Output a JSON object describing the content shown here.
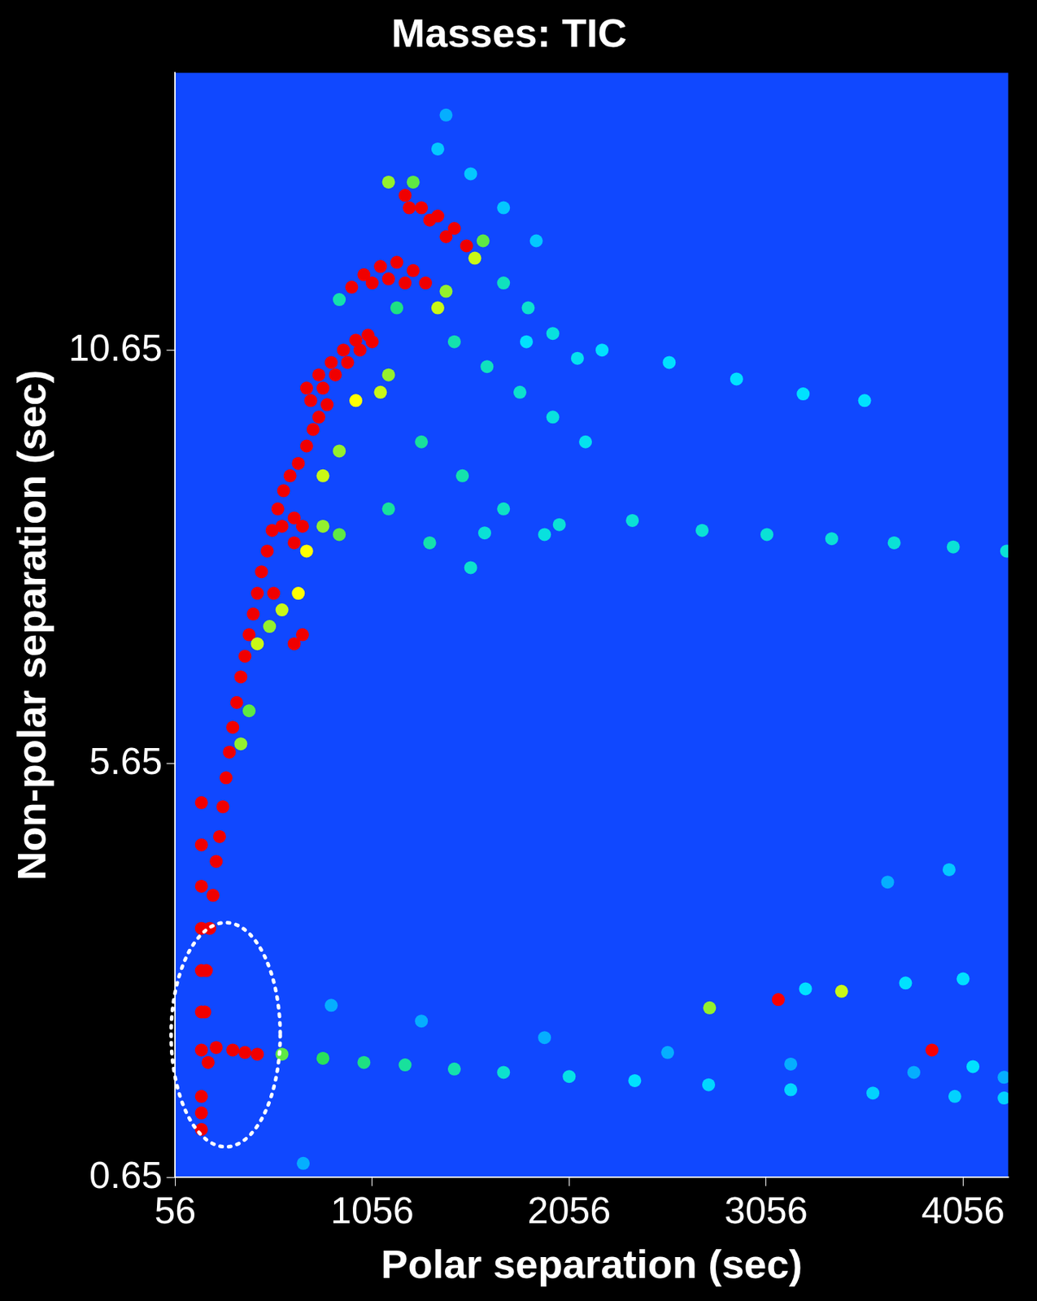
{
  "chart_data": {
    "type": "heatmap",
    "title": "Masses: TIC",
    "x_label": "Polar separation (sec)",
    "y_label": "Non-polar separation (sec)",
    "xlim": [
      56,
      4285
    ],
    "ylim": [
      0.65,
      14.0
    ],
    "xticks": [
      56,
      1056,
      2056,
      3056,
      4056
    ],
    "yticks": [
      0.65,
      5.65,
      10.65
    ],
    "grid": false,
    "zlim": [
      0,
      100
    ],
    "highlight": {
      "x": [
        35,
        589
      ],
      "y": [
        1.02,
        3.73
      ]
    },
    "cells": [
      [
        1431,
        13.49,
        20
      ],
      [
        848,
        2.73,
        20
      ],
      [
        1306,
        2.54,
        20
      ],
      [
        1931,
        2.34,
        20
      ],
      [
        2556,
        2.16,
        20
      ],
      [
        3181,
        2.02,
        20
      ],
      [
        3806,
        1.92,
        20
      ],
      [
        4264,
        1.86,
        20
      ],
      [
        3673,
        4.22,
        20
      ],
      [
        706,
        0.82,
        20
      ],
      [
        1389,
        13.08,
        25
      ],
      [
        1556,
        12.78,
        25
      ],
      [
        1723,
        12.37,
        25
      ],
      [
        1889,
        11.97,
        25
      ],
      [
        3985,
        4.37,
        25
      ],
      [
        1839,
        10.75,
        30
      ],
      [
        2223,
        10.65,
        30
      ],
      [
        2564,
        10.5,
        30
      ],
      [
        2906,
        10.3,
        30
      ],
      [
        3244,
        10.12,
        30
      ],
      [
        3556,
        10.04,
        30
      ],
      [
        1627,
        8.44,
        35
      ],
      [
        2006,
        8.54,
        35
      ],
      [
        2377,
        8.59,
        35
      ],
      [
        2731,
        8.47,
        35
      ],
      [
        3060,
        8.42,
        35
      ],
      [
        3389,
        8.37,
        35
      ],
      [
        3706,
        8.32,
        35
      ],
      [
        4006,
        8.27,
        35
      ],
      [
        4277,
        8.22,
        35
      ],
      [
        3256,
        2.93,
        30
      ],
      [
        3764,
        3.0,
        30
      ],
      [
        4056,
        3.05,
        30
      ],
      [
        4106,
        1.99,
        30
      ],
      [
        2769,
        2.7,
        60
      ],
      [
        3439,
        2.9,
        65
      ],
      [
        3118,
        2.8,
        92
      ],
      [
        3898,
        2.19,
        92
      ],
      [
        1723,
        11.46,
        38
      ],
      [
        1848,
        11.16,
        36
      ],
      [
        1973,
        10.85,
        34
      ],
      [
        2098,
        10.55,
        32
      ],
      [
        1473,
        10.75,
        40
      ],
      [
        1639,
        10.45,
        38
      ],
      [
        1806,
        10.14,
        36
      ],
      [
        1973,
        9.84,
        34
      ],
      [
        2139,
        9.54,
        32
      ],
      [
        1306,
        9.54,
        42
      ],
      [
        1514,
        9.13,
        40
      ],
      [
        1723,
        8.73,
        37
      ],
      [
        1931,
        8.42,
        34
      ],
      [
        1139,
        8.73,
        42
      ],
      [
        1348,
        8.32,
        40
      ],
      [
        1556,
        8.02,
        36
      ],
      [
        889,
        11.26,
        40
      ],
      [
        1181,
        11.16,
        45
      ],
      [
        598,
        2.14,
        55
      ],
      [
        806,
        2.09,
        50
      ],
      [
        1014,
        2.04,
        45
      ],
      [
        1223,
        2.01,
        42
      ],
      [
        1473,
        1.96,
        40
      ],
      [
        1723,
        1.92,
        36
      ],
      [
        2056,
        1.87,
        33
      ],
      [
        2389,
        1.82,
        30
      ],
      [
        2764,
        1.77,
        28
      ],
      [
        3181,
        1.71,
        28
      ],
      [
        3598,
        1.67,
        27
      ],
      [
        4014,
        1.63,
        27
      ],
      [
        4264,
        1.61,
        27
      ],
      [
        473,
        7.1,
        65
      ],
      [
        535,
        7.31,
        60
      ],
      [
        598,
        7.51,
        65
      ],
      [
        723,
        8.22,
        70
      ],
      [
        806,
        8.52,
        60
      ],
      [
        889,
        8.42,
        55
      ],
      [
        681,
        7.71,
        70
      ],
      [
        806,
        9.13,
        65
      ],
      [
        889,
        9.43,
        60
      ],
      [
        973,
        10.04,
        70
      ],
      [
        1098,
        10.14,
        65
      ],
      [
        1139,
        10.35,
        60
      ],
      [
        1389,
        11.16,
        65
      ],
      [
        1431,
        11.36,
        60
      ],
      [
        1577,
        11.76,
        65
      ],
      [
        1619,
        11.97,
        55
      ],
      [
        1139,
        12.68,
        60
      ],
      [
        1264,
        12.68,
        55
      ],
      [
        389,
        5.89,
        60
      ],
      [
        431,
        6.29,
        55
      ],
      [
        206,
        2.65,
        95
      ],
      [
        214,
        3.15,
        95
      ],
      [
        231,
        3.66,
        95
      ],
      [
        248,
        4.06,
        95
      ],
      [
        264,
        4.47,
        95
      ],
      [
        281,
        4.77,
        95
      ],
      [
        298,
        5.13,
        95
      ],
      [
        314,
        5.48,
        95
      ],
      [
        331,
        5.79,
        95
      ],
      [
        348,
        6.09,
        95
      ],
      [
        368,
        6.39,
        95
      ],
      [
        389,
        6.7,
        95
      ],
      [
        410,
        6.95,
        95
      ],
      [
        431,
        7.21,
        95
      ],
      [
        452,
        7.46,
        95
      ],
      [
        473,
        7.71,
        95
      ],
      [
        494,
        7.97,
        95
      ],
      [
        523,
        8.22,
        95
      ],
      [
        548,
        8.47,
        95
      ],
      [
        577,
        8.73,
        95
      ],
      [
        606,
        8.95,
        95
      ],
      [
        639,
        9.13,
        95
      ],
      [
        681,
        9.28,
        95
      ],
      [
        723,
        9.49,
        95
      ],
      [
        756,
        9.69,
        95
      ],
      [
        785,
        9.84,
        95
      ],
      [
        827,
        9.99,
        95
      ],
      [
        744,
        10.04,
        95
      ],
      [
        806,
        10.19,
        95
      ],
      [
        869,
        10.35,
        95
      ],
      [
        931,
        10.5,
        95
      ],
      [
        994,
        10.65,
        95
      ],
      [
        1056,
        10.75,
        95
      ],
      [
        723,
        10.19,
        95
      ],
      [
        785,
        10.35,
        95
      ],
      [
        848,
        10.5,
        95
      ],
      [
        910,
        10.65,
        95
      ],
      [
        973,
        10.77,
        95
      ],
      [
        1035,
        10.83,
        95
      ],
      [
        952,
        11.41,
        95
      ],
      [
        1014,
        11.56,
        95
      ],
      [
        1098,
        11.66,
        95
      ],
      [
        1181,
        11.71,
        95
      ],
      [
        1264,
        11.61,
        95
      ],
      [
        1327,
        11.46,
        95
      ],
      [
        1056,
        11.46,
        95
      ],
      [
        1139,
        11.51,
        95
      ],
      [
        1223,
        11.46,
        95
      ],
      [
        1223,
        12.52,
        95
      ],
      [
        1306,
        12.37,
        95
      ],
      [
        1389,
        12.27,
        95
      ],
      [
        1473,
        12.12,
        95
      ],
      [
        1535,
        11.91,
        95
      ],
      [
        1244,
        12.37,
        95
      ],
      [
        1348,
        12.22,
        95
      ],
      [
        1431,
        12.02,
        95
      ],
      [
        660,
        8.62,
        95
      ],
      [
        702,
        8.52,
        95
      ],
      [
        660,
        8.32,
        95
      ],
      [
        702,
        7.21,
        95
      ],
      [
        660,
        7.1,
        95
      ],
      [
        556,
        7.71,
        95
      ],
      [
        598,
        8.52,
        95
      ],
      [
        189,
        2.19,
        95
      ],
      [
        264,
        2.22,
        95
      ],
      [
        348,
        2.19,
        95
      ],
      [
        410,
        2.16,
        95
      ],
      [
        473,
        2.14,
        95
      ],
      [
        223,
        2.04,
        95
      ],
      [
        189,
        1.63,
        95
      ],
      [
        189,
        1.43,
        95
      ],
      [
        189,
        1.23,
        95
      ],
      [
        189,
        5.18,
        95
      ],
      [
        189,
        4.67,
        95
      ],
      [
        189,
        4.17,
        95
      ],
      [
        189,
        3.66,
        95
      ],
      [
        189,
        3.15,
        95
      ],
      [
        189,
        2.65,
        95
      ]
    ]
  }
}
